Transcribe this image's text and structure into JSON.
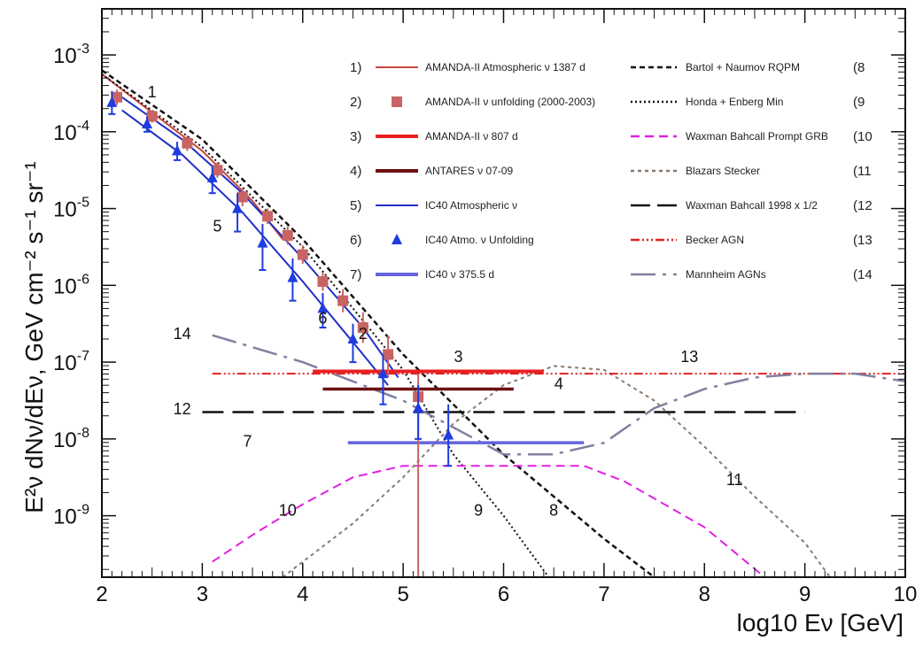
{
  "chart_data": {
    "type": "line",
    "xlabel": "log10 Eν [GeV]",
    "ylabel": "E²ν dNν/dEν, GeV cm⁻² s⁻¹ sr⁻¹",
    "xlim": [
      2,
      10
    ],
    "ylim_log10": [
      -9.8,
      -2.4
    ],
    "y_scale": "log",
    "grid": false,
    "legend_placement": "top-right",
    "x_ticks": [
      "2",
      "3",
      "4",
      "5",
      "6",
      "7",
      "8",
      "9",
      "10"
    ],
    "y_ticks": [
      {
        "base": "10",
        "exp": "-3",
        "log10": -3
      },
      {
        "base": "10",
        "exp": "-4",
        "log10": -4
      },
      {
        "base": "10",
        "exp": "-5",
        "log10": -5
      },
      {
        "base": "10",
        "exp": "-6",
        "log10": -6
      },
      {
        "base": "10",
        "exp": "-7",
        "log10": -7
      },
      {
        "base": "10",
        "exp": "-8",
        "log10": -8
      },
      {
        "base": "10",
        "exp": "-9",
        "log10": -9
      }
    ],
    "legend_left": [
      {
        "num": "1)",
        "label": "AMANDA-II Atmospheric ν 1387 d",
        "color": "#c8463c",
        "style": "line"
      },
      {
        "num": "2)",
        "label": "AMANDA-II ν unfolding (2000-2003)",
        "color": "#c86464",
        "style": "square"
      },
      {
        "num": "3)",
        "label": "AMANDA-II ν 807 d",
        "color": "#e82020",
        "style": "thick"
      },
      {
        "num": "4)",
        "label": "ANTARES ν 07-09",
        "color": "#6e1010",
        "style": "thick"
      },
      {
        "num": "5)",
        "label": "IC40 Atmospheric ν",
        "color": "#1e2ec8",
        "style": "line"
      },
      {
        "num": "6)",
        "label": "IC40 Atmo. ν Unfolding",
        "color": "#1e3ce0",
        "style": "triangle"
      },
      {
        "num": "7)",
        "label": "IC40 ν 375.5 d",
        "color": "#6464dc",
        "style": "thick"
      }
    ],
    "legend_right": [
      {
        "num": "(8",
        "label": "Bartol + Naumov RQPM",
        "color": "#111111",
        "dash": "6,4"
      },
      {
        "num": "(9",
        "label": "Honda + Enberg Min",
        "color": "#111111",
        "dash": "2,3"
      },
      {
        "num": "(10",
        "label": "Waxman Bahcall Prompt GRB",
        "color": "#e020e0",
        "dash": "10,6"
      },
      {
        "num": "(11",
        "label": "Blazars Stecker",
        "color": "#8c7a6e",
        "dash": "4,4"
      },
      {
        "num": "(12",
        "label": "Waxman Bahcall 1998 x 1/2",
        "color": "#111111",
        "dash": "22,8"
      },
      {
        "num": "(13",
        "label": "Becker AGN",
        "color": "#e02020",
        "dash": "10,3,2,3,2,3,2,3"
      },
      {
        "num": "(14",
        "label": "Mannheim AGNs",
        "color": "#8080a0",
        "dash": "28,8,4,8"
      }
    ],
    "series": [
      {
        "id": "1",
        "color": "#c8463c",
        "width": 2,
        "dash": "",
        "x": [
          2.0,
          2.5,
          3.0,
          3.5,
          3.8
        ],
        "y": [
          -3.25,
          -3.75,
          -4.25,
          -4.9,
          -5.4
        ]
      },
      {
        "id": "5-upper",
        "color": "#1e2ec8",
        "width": 2,
        "dash": "",
        "x": [
          2.2,
          2.8,
          3.4,
          4.0,
          4.6,
          4.95
        ],
        "y": [
          -3.55,
          -4.1,
          -4.8,
          -5.65,
          -6.55,
          -7.2
        ]
      },
      {
        "id": "5-lower",
        "color": "#1e2ec8",
        "width": 2,
        "dash": "",
        "x": [
          2.2,
          2.8,
          3.4,
          4.0,
          4.6,
          4.85
        ],
        "y": [
          -3.72,
          -4.3,
          -5.05,
          -5.95,
          -6.9,
          -7.3
        ]
      },
      {
        "id": "8",
        "color": "#111111",
        "width": 2.5,
        "dash": "6,4",
        "x": [
          2.0,
          3.0,
          4.0,
          5.0,
          6.0,
          7.0,
          7.5
        ],
        "y": [
          -3.2,
          -4.1,
          -5.4,
          -6.9,
          -8.2,
          -9.3,
          -9.8
        ]
      },
      {
        "id": "9",
        "color": "#111111",
        "width": 2,
        "dash": "2,3",
        "x": [
          2.0,
          3.0,
          4.0,
          5.0,
          5.5,
          6.0,
          6.45
        ],
        "y": [
          -3.25,
          -4.2,
          -5.5,
          -7.1,
          -8.2,
          -9.0,
          -9.8
        ]
      },
      {
        "id": "10",
        "color": "#e020e0",
        "width": 2,
        "dash": "10,6",
        "x": [
          3.1,
          3.5,
          4.0,
          4.5,
          5.0,
          6.0,
          6.8,
          7.2,
          8.0,
          8.6
        ],
        "y": [
          -9.6,
          -9.25,
          -8.85,
          -8.5,
          -8.35,
          -8.35,
          -8.35,
          -8.55,
          -9.15,
          -9.8
        ]
      },
      {
        "id": "11",
        "color": "#8c7a6e",
        "width": 2,
        "dash": "4,4",
        "x": [
          3.8,
          4.5,
          5.0,
          5.5,
          6.0,
          6.5,
          7.0,
          7.5,
          8.0,
          8.5,
          9.0,
          9.25
        ],
        "y": [
          -9.8,
          -9.1,
          -8.5,
          -7.8,
          -7.3,
          -7.05,
          -7.1,
          -7.5,
          -8.1,
          -8.75,
          -9.35,
          -9.8
        ]
      },
      {
        "id": "12",
        "color": "#111111",
        "width": 2.5,
        "dash": "24,10",
        "x": [
          3.0,
          9.0
        ],
        "y": [
          -7.65,
          -7.65
        ]
      },
      {
        "id": "13",
        "color": "#e02020",
        "width": 2,
        "dash": "10,3,2,3,2,3,2,3",
        "x": [
          3.1,
          10.0
        ],
        "y": [
          -7.15,
          -7.15
        ]
      },
      {
        "id": "14",
        "color": "#8080a0",
        "width": 2.5,
        "dash": "28,8,4,8",
        "x": [
          3.1,
          4.0,
          5.0,
          5.5,
          6.0,
          6.5,
          7.0,
          7.5,
          8.0,
          8.5,
          9.0,
          9.5,
          10.0
        ],
        "y": [
          -6.65,
          -7.0,
          -7.5,
          -7.85,
          -8.2,
          -8.2,
          -8.05,
          -7.6,
          -7.35,
          -7.2,
          -7.15,
          -7.15,
          -7.25
        ]
      }
    ],
    "bands": [
      {
        "id": "3",
        "color": "#e82020",
        "width": 4,
        "x": [
          4.1,
          6.4
        ],
        "y": -7.12
      },
      {
        "id": "4",
        "color": "#6e1010",
        "width": 3.5,
        "x": [
          4.2,
          6.1
        ],
        "y": -7.35
      },
      {
        "id": "7",
        "color": "#6464dc",
        "width": 3.5,
        "x": [
          4.45,
          6.8
        ],
        "y": -8.05
      }
    ],
    "points_amanda_unfolding": {
      "color": "#c86464",
      "x": [
        2.15,
        2.5,
        2.85,
        3.15,
        3.4,
        3.65,
        3.85,
        4.0,
        4.2,
        4.4,
        4.6,
        4.85,
        5.15
      ],
      "y": [
        -3.55,
        -3.8,
        -4.15,
        -4.5,
        -4.85,
        -5.1,
        -5.35,
        -5.6,
        -5.95,
        -6.2,
        -6.55,
        -6.9,
        -7.45
      ],
      "err_up": [
        0.1,
        0.08,
        0.1,
        0.1,
        0.12,
        0.1,
        0.12,
        0.12,
        0.12,
        0.15,
        0.2,
        0.25,
        0.3
      ],
      "err_dn": [
        0.1,
        0.08,
        0.1,
        0.1,
        0.12,
        0.1,
        0.12,
        0.12,
        0.12,
        0.15,
        0.2,
        0.3,
        2.4
      ]
    },
    "points_ic40_unfolding": {
      "color": "#1e3ce0",
      "x": [
        2.1,
        2.45,
        2.75,
        3.1,
        3.35,
        3.6,
        3.9,
        4.2,
        4.5,
        4.8,
        5.15,
        5.45
      ],
      "y": [
        -3.62,
        -3.9,
        -4.25,
        -4.6,
        -5.0,
        -5.45,
        -5.9,
        -6.3,
        -6.7,
        -7.15,
        -7.6,
        -7.95
      ],
      "err_up": [
        0.15,
        0.1,
        0.12,
        0.15,
        0.2,
        0.25,
        0.25,
        0.2,
        0.2,
        0.25,
        0.3,
        0.4
      ],
      "err_dn": [
        0.15,
        0.1,
        0.12,
        0.2,
        0.3,
        0.35,
        0.3,
        0.25,
        0.3,
        0.4,
        0.4,
        0.4
      ]
    },
    "annotations": [
      {
        "text": "1",
        "x": 2.5,
        "y": -3.55
      },
      {
        "text": "5",
        "x": 3.15,
        "y": -5.3
      },
      {
        "text": "6",
        "x": 4.2,
        "y": -6.5
      },
      {
        "text": "2",
        "x": 4.6,
        "y": -6.7
      },
      {
        "text": "3",
        "x": 5.55,
        "y": -7.0
      },
      {
        "text": "4",
        "x": 6.55,
        "y": -7.35
      },
      {
        "text": "13",
        "x": 7.85,
        "y": -7.0
      },
      {
        "text": "14",
        "x": 2.8,
        "y": -6.7
      },
      {
        "text": "12",
        "x": 2.8,
        "y": -7.68
      },
      {
        "text": "7",
        "x": 3.45,
        "y": -8.1
      },
      {
        "text": "11",
        "x": 8.3,
        "y": -8.6
      },
      {
        "text": "10",
        "x": 3.85,
        "y": -9.0
      },
      {
        "text": "9",
        "x": 5.75,
        "y": -9.0
      },
      {
        "text": "8",
        "x": 6.5,
        "y": -9.0
      }
    ]
  }
}
